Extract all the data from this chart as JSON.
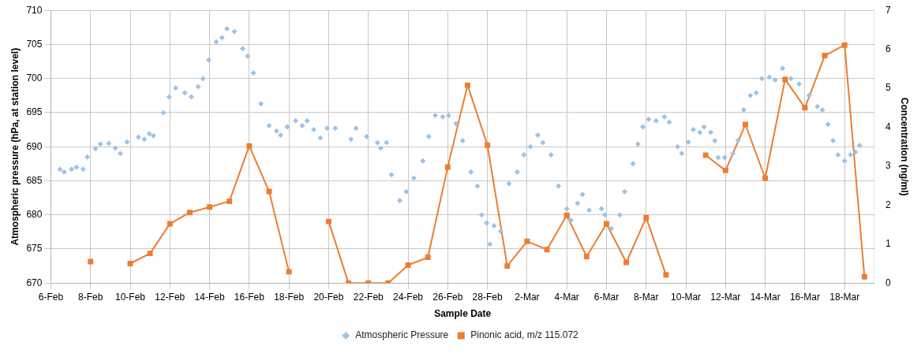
{
  "chart_data": {
    "type": "line",
    "xlabel": "Sample Date",
    "ylabel": "Atmospheric pressure (hPa, at station level)",
    "y2label": "Concentration (ng/ml)",
    "xlim": [
      "--02-06",
      "--03-19T12:00"
    ],
    "xticks": [
      {
        "value": "--02-06",
        "label": "6-Feb"
      },
      {
        "value": "--02-08",
        "label": "8-Feb"
      },
      {
        "value": "--02-10",
        "label": "10-Feb"
      },
      {
        "value": "--02-12",
        "label": "12-Feb"
      },
      {
        "value": "--02-14",
        "label": "14-Feb"
      },
      {
        "value": "--02-16",
        "label": "16-Feb"
      },
      {
        "value": "--02-18",
        "label": "18-Feb"
      },
      {
        "value": "--02-20",
        "label": "20-Feb"
      },
      {
        "value": "--02-22",
        "label": "22-Feb"
      },
      {
        "value": "--02-24",
        "label": "24-Feb"
      },
      {
        "value": "--02-26",
        "label": "26-Feb"
      },
      {
        "value": "--02-28",
        "label": "28-Feb"
      },
      {
        "value": "--03-02",
        "label": "2-Mar"
      },
      {
        "value": "--03-04",
        "label": "4-Mar"
      },
      {
        "value": "--03-06",
        "label": "6-Mar"
      },
      {
        "value": "--03-08",
        "label": "8-Mar"
      },
      {
        "value": "--03-10",
        "label": "10-Mar"
      },
      {
        "value": "--03-12",
        "label": "12-Mar"
      },
      {
        "value": "--03-14",
        "label": "14-Mar"
      },
      {
        "value": "--03-16",
        "label": "16-Mar"
      },
      {
        "value": "--03-18",
        "label": "18-Mar"
      }
    ],
    "ylim": [
      670,
      710
    ],
    "yticks": [
      670,
      675,
      680,
      685,
      690,
      695,
      700,
      705,
      710
    ],
    "y2lim": [
      0,
      7
    ],
    "y2ticks": [
      0,
      1,
      2,
      3,
      4,
      5,
      6,
      7
    ],
    "grid": true,
    "legend": "bottom",
    "series": [
      {
        "name": "Atmospheric Pressure",
        "type": "scatter",
        "marker": "diamond",
        "color": "#9dc3e6",
        "x": [
          "--02-06T11:00",
          "--02-06T16:00",
          "--02-07T01:00",
          "--02-07T07:00",
          "--02-07T15:00",
          "--02-07T20:00",
          "--02-08T06:00",
          "--02-08T12:00",
          "--02-08T22:00",
          "--02-09T06:00",
          "--02-09T12:00",
          "--02-09T20:00",
          "--02-10T10:00",
          "--02-10T17:00",
          "--02-10T23:00",
          "--02-11T04:00",
          "--02-11T16:00",
          "--02-11T23:00",
          "--02-12T07:00",
          "--02-12T18:00",
          "--02-13T02:00",
          "--02-13T10:00",
          "--02-13T16:00",
          "--02-13T23:00",
          "--02-14T08:00",
          "--02-14T15:00",
          "--02-14T21:00",
          "--02-15T06:00",
          "--02-15T16:00",
          "--02-15T22:00",
          "--02-16T05:00",
          "--02-16T14:00",
          "--02-17T00:00",
          "--02-17T09:00",
          "--02-17T14:00",
          "--02-17T22:00",
          "--02-18T08:00",
          "--02-18T16:00",
          "--02-18T22:00",
          "--02-19T06:00",
          "--02-19T14:00",
          "--02-19T22:00",
          "--02-20T08:00",
          "--02-21T03:00",
          "--02-21T09:00",
          "--02-21T22:00",
          "--02-22T11:00",
          "--02-22T15:00",
          "--02-22T22:00",
          "--02-23T04:00",
          "--02-23T14:00",
          "--02-23T22:00",
          "--02-24T07:00",
          "--02-24T18:00",
          "--02-25T01:00",
          "--02-25T09:00",
          "--02-25T18:00",
          "--02-26T01:00",
          "--02-26T10:00",
          "--02-26T18:00",
          "--02-27T04:00",
          "--02-27T12:00",
          "--02-27T17:00",
          "--02-27T23:00",
          "--02-28T03:00",
          "--02-28T08:00",
          "--02-28T16:00",
          "--03-01T02:00",
          "--03-01T12:00",
          "--03-01T20:00",
          "--03-02T04:00",
          "--03-02T13:00",
          "--03-02T19:00",
          "--03-03T05:00",
          "--03-03T14:00",
          "--03-04T00:00",
          "--03-04T05:00",
          "--03-04T13:00",
          "--03-04T19:00",
          "--03-05T03:00",
          "--03-05T18:00",
          "--03-05T22:00",
          "--03-06T06:00",
          "--03-06T16:00",
          "--03-06T22:00",
          "--03-07T08:00",
          "--03-07T14:00",
          "--03-07T20:00",
          "--03-08T03:00",
          "--03-08T12:00",
          "--03-08T22:00",
          "--03-09T04:00",
          "--03-09T14:00",
          "--03-09T19:00",
          "--03-10T03:00",
          "--03-10T09:00",
          "--03-10T17:00",
          "--03-10T22:00",
          "--03-11T06:00",
          "--03-11T11:00",
          "--03-11T15:00",
          "--03-11T23:00",
          "--03-12T09:00",
          "--03-12T15:00",
          "--03-12T22:00",
          "--03-13T06:00",
          "--03-13T13:00",
          "--03-13T20:00",
          "--03-14T05:00",
          "--03-14T12:00",
          "--03-14T21:00",
          "--03-15T07:00",
          "--03-15T17:00",
          "--03-16T05:00",
          "--03-16T15:00",
          "--03-16T21:00",
          "--03-17T04:00",
          "--03-17T10:00",
          "--03-17T16:00",
          "--03-18T00:00",
          "--03-18T07:00",
          "--03-18T13:00",
          "--03-18T18:00"
        ],
        "values": [
          686.7,
          686.3,
          686.7,
          687.0,
          686.7,
          688.5,
          689.7,
          690.4,
          690.5,
          689.8,
          689.0,
          690.7,
          691.4,
          691.1,
          691.9,
          691.6,
          695.0,
          697.3,
          698.6,
          697.9,
          697.3,
          698.8,
          700.0,
          702.7,
          705.4,
          706.0,
          707.3,
          706.9,
          704.4,
          703.3,
          700.8,
          696.3,
          693.1,
          692.3,
          691.7,
          692.9,
          693.8,
          693.1,
          693.8,
          692.5,
          691.3,
          692.7,
          692.7,
          691.1,
          692.7,
          691.5,
          690.6,
          689.8,
          690.6,
          685.9,
          682.1,
          683.4,
          685.4,
          687.9,
          691.5,
          694.6,
          694.4,
          694.6,
          693.4,
          690.9,
          686.3,
          684.2,
          680.0,
          678.8,
          675.7,
          678.4,
          677.6,
          684.6,
          686.3,
          688.8,
          690.0,
          691.7,
          690.6,
          688.8,
          684.2,
          680.9,
          679.2,
          681.7,
          683.0,
          680.7,
          680.9,
          680.0,
          678.0,
          680.0,
          683.4,
          687.5,
          690.4,
          692.9,
          694.0,
          693.8,
          694.4,
          693.6,
          690.0,
          689.0,
          690.7,
          692.5,
          692.1,
          692.9,
          692.1,
          690.9,
          688.4,
          688.4,
          689.0,
          690.9,
          695.4,
          697.5,
          697.9,
          700.0,
          700.2,
          699.8,
          701.5,
          700.0,
          699.2,
          697.5,
          695.9,
          695.4,
          693.3,
          690.9,
          688.8,
          687.9,
          688.8,
          689.2,
          690.2
        ]
      },
      {
        "name": "Pinonic acid, m/z 115.072",
        "type": "line",
        "axis": "y2",
        "marker": "square",
        "color": "#ed7d31",
        "x": [
          "--02-08",
          "--02-09",
          "--02-10",
          "--02-11",
          "--02-12",
          "--02-13",
          "--02-14",
          "--02-15",
          "--02-16",
          "--02-17",
          "--02-18",
          "--02-19",
          "--02-20",
          "--02-21",
          "--02-22",
          "--02-23",
          "--02-24",
          "--02-25",
          "--02-26",
          "--02-27",
          "--02-28",
          "--03-01",
          "--03-02",
          "--03-03",
          "--03-04",
          "--03-05",
          "--03-06",
          "--03-07",
          "--03-08",
          "--03-09",
          "--03-10",
          "--03-11",
          "--03-12",
          "--03-13",
          "--03-14",
          "--03-15",
          "--03-16",
          "--03-17",
          "--03-18",
          "--03-19"
        ],
        "values": [
          0.55,
          null,
          0.5,
          0.76,
          1.52,
          1.81,
          1.95,
          2.1,
          3.52,
          2.35,
          0.29,
          null,
          1.58,
          0,
          0,
          0,
          0.46,
          0.66,
          2.98,
          5.08,
          3.54,
          0.44,
          1.07,
          0.86,
          1.74,
          0.68,
          1.52,
          0.53,
          1.68,
          0.21,
          null,
          3.28,
          2.89,
          4.07,
          2.69,
          5.23,
          4.5,
          5.84,
          6.11,
          0.16
        ]
      }
    ]
  }
}
